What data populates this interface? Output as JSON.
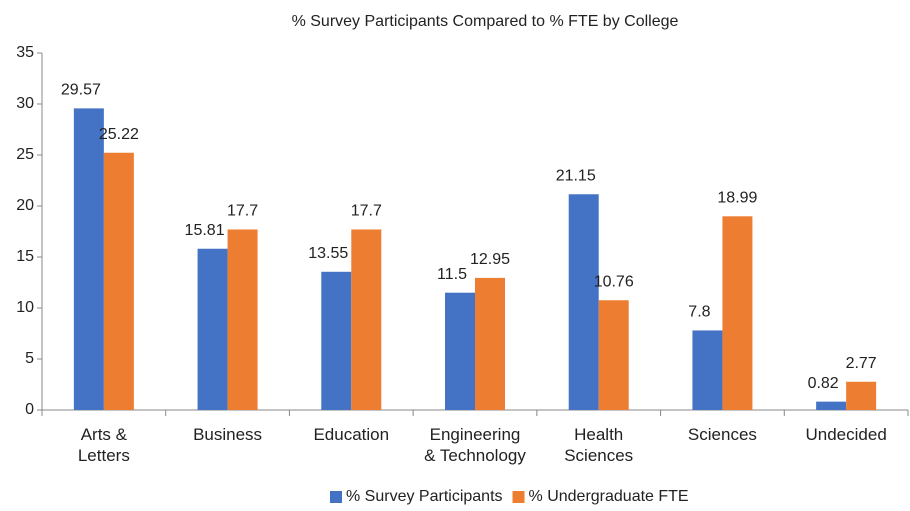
{
  "chart_data": {
    "type": "bar",
    "title": "% Survey Participants Compared to % FTE by College",
    "categories": [
      "Arts &\nLetters",
      "Business",
      "Education",
      "Engineering\n& Technology",
      "Health\nSciences",
      "Sciences",
      "Undecided"
    ],
    "series": [
      {
        "name": "% Survey Participants",
        "color": "#4472c4",
        "values": [
          29.57,
          15.81,
          13.55,
          11.5,
          21.15,
          7.8,
          0.82
        ]
      },
      {
        "name": "% Undergraduate FTE",
        "color": "#ed7d31",
        "values": [
          25.22,
          17.7,
          17.7,
          12.95,
          10.76,
          18.99,
          2.77
        ]
      }
    ],
    "ylim": [
      0,
      35
    ],
    "yticks": [
      0,
      5,
      10,
      15,
      20,
      25,
      30,
      35
    ],
    "grid": false,
    "legend": "bottom"
  }
}
